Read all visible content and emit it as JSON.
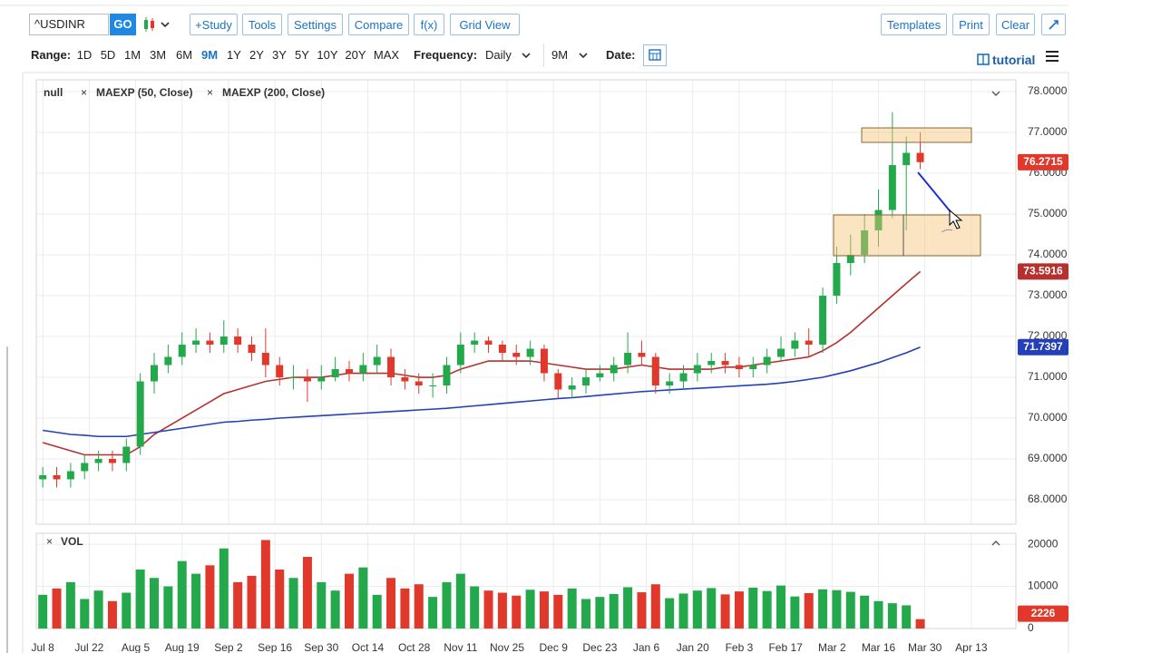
{
  "toolbar": {
    "symbol": "^USDINR",
    "go": "GO",
    "buttons": [
      "+Study",
      "Tools",
      "Settings",
      "Compare",
      "f(x)",
      "Grid View"
    ],
    "right_buttons": [
      "Templates",
      "Print",
      "Clear"
    ]
  },
  "range_bar": {
    "range_label": "Range:",
    "ranges": [
      "1D",
      "5D",
      "1M",
      "3M",
      "6M",
      "9M",
      "1Y",
      "2Y",
      "3Y",
      "5Y",
      "10Y",
      "20Y",
      "MAX"
    ],
    "active_range": "9M",
    "frequency_label": "Frequency:",
    "frequency": "Daily",
    "period": "9M",
    "date_label": "Date:",
    "tutorial": "tutorial"
  },
  "chart_data": {
    "type": "candlestick",
    "name": "null",
    "up_color": "#23a84b",
    "down_color": "#e0392b",
    "grid": true,
    "xlim": [
      -1.4,
      209.6
    ],
    "xticks": [
      {
        "value": 0,
        "label": "Jul 8"
      },
      {
        "value": 10,
        "label": "Jul 22"
      },
      {
        "value": 20,
        "label": "Aug 5"
      },
      {
        "value": 30,
        "label": "Aug 19"
      },
      {
        "value": 40,
        "label": "Sep 2"
      },
      {
        "value": 50,
        "label": "Sep 16"
      },
      {
        "value": 60,
        "label": "Sep 30"
      },
      {
        "value": 70,
        "label": "Oct 14"
      },
      {
        "value": 80,
        "label": "Oct 28"
      },
      {
        "value": 90,
        "label": "Nov 11"
      },
      {
        "value": 100,
        "label": "Nov 25"
      },
      {
        "value": 110,
        "label": "Dec 9"
      },
      {
        "value": 120,
        "label": "Dec 23"
      },
      {
        "value": 130,
        "label": "Jan 6"
      },
      {
        "value": 140,
        "label": "Jan 20"
      },
      {
        "value": 150,
        "label": "Feb 3"
      },
      {
        "value": 160,
        "label": "Feb 17"
      },
      {
        "value": 170,
        "label": "Mar 2"
      },
      {
        "value": 180,
        "label": "Mar 16"
      },
      {
        "value": 190,
        "label": "Mar 30"
      },
      {
        "value": 200,
        "label": "Apr 13"
      }
    ],
    "ylim": [
      67.4,
      78.29
    ],
    "yticks": [
      {
        "value": 68,
        "label": "68.0000"
      },
      {
        "value": 69,
        "label": "69.0000"
      },
      {
        "value": 70,
        "label": "70.0000"
      },
      {
        "value": 71,
        "label": "71.0000"
      },
      {
        "value": 72,
        "label": "72.0000"
      },
      {
        "value": 73,
        "label": "73.0000"
      },
      {
        "value": 74,
        "label": "74.0000"
      },
      {
        "value": 75,
        "label": "75.0000"
      },
      {
        "value": 76,
        "label": "76.0000"
      },
      {
        "value": 77,
        "label": "77.0000"
      },
      {
        "value": 78,
        "label": "78.0000"
      }
    ],
    "x": [
      0,
      3,
      6,
      9,
      12,
      15,
      18,
      21,
      24,
      27,
      30,
      33,
      36,
      39,
      42,
      45,
      48,
      51,
      54,
      57,
      60,
      63,
      66,
      69,
      72,
      75,
      78,
      81,
      84,
      87,
      90,
      93,
      96,
      99,
      102,
      105,
      108,
      111,
      114,
      117,
      120,
      123,
      126,
      129,
      132,
      135,
      138,
      141,
      144,
      147,
      150,
      153,
      156,
      159,
      162,
      165,
      168,
      171,
      174,
      177,
      180,
      183,
      186,
      189
    ],
    "open": [
      68.5,
      68.6,
      68.5,
      68.7,
      68.9,
      69.0,
      68.9,
      69.3,
      70.9,
      71.3,
      71.5,
      71.8,
      71.9,
      71.8,
      72.0,
      71.8,
      71.6,
      71.3,
      71.0,
      71.0,
      70.9,
      71.0,
      71.2,
      71.1,
      71.3,
      71.5,
      71.0,
      70.9,
      70.8,
      70.8,
      71.3,
      71.8,
      71.9,
      71.8,
      71.6,
      71.5,
      71.7,
      71.1,
      70.7,
      70.8,
      71.0,
      71.1,
      71.3,
      71.6,
      71.5,
      70.8,
      70.9,
      71.1,
      71.3,
      71.4,
      71.3,
      71.2,
      71.3,
      71.5,
      71.7,
      71.9,
      71.8,
      73.0,
      73.8,
      74.0,
      74.6,
      75.1,
      76.2,
      76.5
    ],
    "high": [
      68.8,
      68.8,
      68.9,
      69.1,
      69.2,
      69.2,
      69.5,
      71.1,
      71.6,
      71.8,
      72.1,
      72.2,
      72.1,
      72.4,
      72.2,
      72.0,
      72.2,
      71.5,
      71.3,
      71.2,
      71.3,
      71.5,
      71.4,
      71.6,
      71.8,
      71.7,
      71.2,
      71.1,
      71.1,
      71.5,
      72.1,
      72.1,
      72.0,
      71.9,
      71.8,
      71.9,
      71.8,
      71.2,
      71.0,
      71.2,
      71.3,
      71.5,
      72.1,
      71.9,
      71.6,
      71.1,
      71.3,
      71.6,
      71.6,
      71.6,
      71.5,
      71.5,
      71.7,
      72.0,
      72.1,
      72.2,
      73.2,
      74.2,
      74.5,
      75.0,
      75.6,
      77.5,
      76.9,
      77.0
    ],
    "low": [
      68.3,
      68.3,
      68.3,
      68.5,
      68.7,
      68.7,
      68.7,
      69.1,
      70.6,
      71.1,
      71.3,
      71.6,
      71.6,
      71.6,
      71.6,
      71.4,
      71.0,
      70.8,
      70.7,
      70.4,
      70.7,
      70.9,
      70.9,
      70.9,
      71.1,
      70.8,
      70.7,
      70.6,
      70.5,
      70.6,
      71.1,
      71.6,
      71.6,
      71.4,
      71.3,
      71.3,
      70.9,
      70.5,
      70.5,
      70.6,
      70.9,
      70.9,
      71.1,
      71.3,
      70.6,
      70.6,
      70.7,
      70.9,
      71.1,
      71.1,
      71.0,
      71.0,
      71.1,
      71.4,
      71.5,
      71.5,
      71.6,
      72.8,
      73.5,
      73.8,
      74.2,
      74.9,
      74.6,
      76.1
    ],
    "close": [
      68.6,
      68.5,
      68.7,
      68.9,
      69.0,
      68.9,
      69.3,
      70.9,
      71.3,
      71.5,
      71.8,
      71.9,
      71.8,
      72.0,
      71.8,
      71.6,
      71.3,
      71.0,
      71.0,
      70.9,
      71.0,
      71.2,
      71.1,
      71.3,
      71.5,
      71.0,
      70.9,
      70.8,
      70.8,
      71.3,
      71.8,
      71.9,
      71.8,
      71.6,
      71.5,
      71.7,
      71.1,
      70.7,
      70.8,
      71.0,
      71.1,
      71.3,
      71.6,
      71.5,
      70.8,
      70.9,
      71.1,
      71.3,
      71.4,
      71.3,
      71.2,
      71.3,
      71.5,
      71.7,
      71.9,
      71.8,
      73.0,
      73.8,
      74.0,
      74.6,
      75.1,
      76.2,
      76.5,
      76.2715
    ],
    "series": [
      {
        "name": "MAEXP (50, Close)",
        "color": "#b5312f",
        "values": [
          69.4,
          69.3,
          69.2,
          69.1,
          69.1,
          69.1,
          69.1,
          69.3,
          69.6,
          69.8,
          70.0,
          70.2,
          70.4,
          70.6,
          70.7,
          70.8,
          70.9,
          70.95,
          71.0,
          71.0,
          71.0,
          71.05,
          71.1,
          71.1,
          71.1,
          71.1,
          71.05,
          71.0,
          71.0,
          71.05,
          71.2,
          71.3,
          71.4,
          71.4,
          71.4,
          71.4,
          71.35,
          71.3,
          71.25,
          71.2,
          71.2,
          71.2,
          71.25,
          71.3,
          71.25,
          71.2,
          71.2,
          71.2,
          71.2,
          71.25,
          71.25,
          71.3,
          71.35,
          71.4,
          71.45,
          71.5,
          71.65,
          71.85,
          72.1,
          72.4,
          72.7,
          73.0,
          73.3,
          73.5916
        ]
      },
      {
        "name": "MAEXP (200, Close)",
        "color": "#2340b8",
        "values": [
          69.7,
          69.65,
          69.6,
          69.58,
          69.55,
          69.55,
          69.55,
          69.6,
          69.65,
          69.7,
          69.75,
          69.8,
          69.85,
          69.9,
          69.92,
          69.95,
          69.97,
          70.0,
          70.02,
          70.04,
          70.06,
          70.08,
          70.1,
          70.12,
          70.14,
          70.16,
          70.18,
          70.2,
          70.22,
          70.24,
          70.27,
          70.3,
          70.33,
          70.36,
          70.39,
          70.42,
          70.45,
          70.48,
          70.5,
          70.53,
          70.56,
          70.59,
          70.62,
          70.65,
          70.67,
          70.69,
          70.71,
          70.73,
          70.75,
          70.77,
          70.79,
          70.81,
          70.83,
          70.86,
          70.9,
          70.95,
          71.0,
          71.08,
          71.16,
          71.26,
          71.36,
          71.48,
          71.6,
          71.7397
        ]
      }
    ],
    "volume": {
      "name": "VOL",
      "ylim": [
        0,
        22600
      ],
      "yticks": [
        0,
        10000,
        20000
      ],
      "values": [
        8000,
        9500,
        11000,
        7000,
        9000,
        6500,
        8500,
        14000,
        12000,
        10000,
        16000,
        13000,
        15000,
        19000,
        11000,
        12500,
        21000,
        14000,
        12000,
        17000,
        11000,
        9000,
        13000,
        14500,
        8000,
        12000,
        9500,
        10500,
        7500,
        11000,
        13000,
        10000,
        9000,
        8500,
        7800,
        9200,
        8800,
        8000,
        9500,
        7000,
        7500,
        8200,
        9800,
        8600,
        10500,
        7200,
        8300,
        9000,
        9600,
        8100,
        8800,
        9700,
        8900,
        10200,
        7600,
        8400,
        9300,
        9100,
        8700,
        7800,
        6500,
        6000,
        5500,
        2226
      ]
    }
  }
}
